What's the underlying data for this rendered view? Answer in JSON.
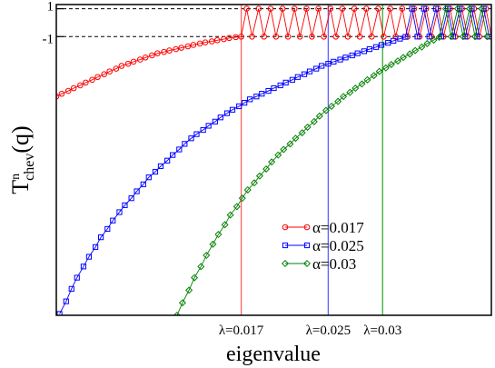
{
  "chart_data": {
    "type": "line",
    "xlabel": "eigenvalue",
    "ylabel": {
      "base": "T",
      "sup": "n",
      "sub": "chev",
      "arg": "(q)"
    },
    "xlim": [
      0,
      0.04
    ],
    "ylim": [
      -21,
      1.3
    ],
    "y_ticks": [
      {
        "value": 1,
        "label": "1"
      },
      {
        "value": -1,
        "label": "-1"
      }
    ],
    "x_markers": [
      {
        "value": 0.017,
        "label": "λ=0.017",
        "color": "#ff6060"
      },
      {
        "value": 0.025,
        "label": "λ=0.025",
        "color": "#6060ff"
      },
      {
        "value": 0.03,
        "label": "λ=0.03",
        "color": "#30b030"
      }
    ],
    "series": [
      {
        "name": "α=0.017",
        "color": "#ff0000",
        "marker": "circle",
        "regime": "oscillating",
        "x": [
          0.0,
          0.0005,
          0.0011,
          0.0016,
          0.0022,
          0.0027,
          0.0033,
          0.0038,
          0.0044,
          0.0049,
          0.0055,
          0.006,
          0.0066,
          0.0071,
          0.0077,
          0.0082,
          0.0088,
          0.0093,
          0.0099,
          0.0104,
          0.011,
          0.0115,
          0.0121,
          0.0126,
          0.0132,
          0.0137,
          0.0143,
          0.0148,
          0.0154,
          0.0159,
          0.0165,
          0.017,
          0.0175,
          0.018,
          0.0186,
          0.0191,
          0.0197,
          0.0202,
          0.0208,
          0.0213,
          0.0219,
          0.0224,
          0.023,
          0.0235,
          0.0241,
          0.0246,
          0.0252,
          0.0257,
          0.0263,
          0.0268,
          0.0274,
          0.0279,
          0.0285,
          0.029,
          0.0296,
          0.0301,
          0.0307,
          0.0312,
          0.0318,
          0.0323,
          0.0329,
          0.0334,
          0.034,
          0.0345,
          0.0351,
          0.0356,
          0.0362,
          0.0367,
          0.0373,
          0.0378,
          0.0384,
          0.0389,
          0.0395,
          0.04
        ],
        "y": [
          -5.3,
          -5.1,
          -4.9,
          -4.7,
          -4.5,
          -4.3,
          -4.1,
          -3.9,
          -3.7,
          -3.5,
          -3.3,
          -3.1,
          -2.95,
          -2.8,
          -2.65,
          -2.5,
          -2.35,
          -2.2,
          -2.1,
          -2.0,
          -1.9,
          -1.8,
          -1.7,
          -1.6,
          -1.5,
          -1.42,
          -1.34,
          -1.26,
          -1.18,
          -1.1,
          -1.04,
          -1.0,
          1.0,
          -1.0,
          1.0,
          -1.0,
          1.0,
          -1.0,
          1.0,
          -1.0,
          1.0,
          -1.0,
          1.0,
          -1.0,
          1.0,
          -1.0,
          1.0,
          -1.0,
          1.0,
          -1.0,
          1.0,
          -1.0,
          1.0,
          -1.0,
          1.0,
          -1.0,
          1.0,
          -1.0,
          1.0,
          -1.0,
          1.0,
          -1.0,
          1.0,
          -1.0,
          1.0,
          -1.0,
          1.0,
          -1.0,
          1.0,
          -1.0,
          1.0,
          -1.0,
          1.0,
          -1.0
        ]
      },
      {
        "name": "α=0.025",
        "color": "#0000ff",
        "marker": "square",
        "regime": "oscillating",
        "x": [
          0.0003,
          0.0009,
          0.0014,
          0.0019,
          0.0025,
          0.003,
          0.0036,
          0.0041,
          0.0047,
          0.0052,
          0.0058,
          0.0063,
          0.0069,
          0.0074,
          0.008,
          0.0085,
          0.0091,
          0.0096,
          0.0102,
          0.0107,
          0.0113,
          0.0118,
          0.0124,
          0.0129,
          0.0135,
          0.014,
          0.0146,
          0.0151,
          0.0157,
          0.0162,
          0.0168,
          0.0173,
          0.0178,
          0.0184,
          0.0189,
          0.0195,
          0.02,
          0.0206,
          0.0211,
          0.0217,
          0.0222,
          0.0228,
          0.0233,
          0.0239,
          0.0244,
          0.025,
          0.0255,
          0.0261,
          0.0266,
          0.0272,
          0.0277,
          0.0283,
          0.0288,
          0.0294,
          0.0299,
          0.0305,
          0.031,
          0.0316,
          0.0321,
          0.0327,
          0.0332,
          0.0338,
          0.0343,
          0.0349,
          0.0354,
          0.036,
          0.0365,
          0.0371,
          0.0376,
          0.0382,
          0.0387,
          0.0393,
          0.0398
        ],
        "y": [
          -20.9,
          -20.0,
          -19.1,
          -18.3,
          -17.5,
          -16.8,
          -16.1,
          -15.4,
          -14.8,
          -14.2,
          -13.6,
          -13.1,
          -12.6,
          -12.1,
          -11.6,
          -11.1,
          -10.7,
          -10.3,
          -9.9,
          -9.5,
          -9.1,
          -8.7,
          -8.3,
          -8.0,
          -7.7,
          -7.4,
          -7.1,
          -6.8,
          -6.5,
          -6.25,
          -6.0,
          -5.75,
          -5.5,
          -5.3,
          -5.1,
          -4.9,
          -4.7,
          -4.5,
          -4.3,
          -4.1,
          -3.9,
          -3.7,
          -3.5,
          -3.3,
          -3.1,
          -2.95,
          -2.8,
          -2.65,
          -2.5,
          -2.35,
          -2.2,
          -2.05,
          -1.9,
          -1.75,
          -1.6,
          -1.45,
          -1.3,
          -1.15,
          -1.02,
          1.0,
          -1.0,
          1.0,
          -1.0,
          1.0,
          -1.0,
          1.0,
          -1.0,
          1.0,
          -1.0,
          1.0,
          -1.0,
          1.0,
          -1.0
        ]
      },
      {
        "name": "α=0.03",
        "color": "#008000",
        "marker": "diamond",
        "regime": "oscillating",
        "x": [
          0.0111,
          0.0116,
          0.0122,
          0.0127,
          0.0133,
          0.0138,
          0.0144,
          0.0149,
          0.0155,
          0.016,
          0.0166,
          0.0171,
          0.0176,
          0.0182,
          0.0187,
          0.0193,
          0.0198,
          0.0204,
          0.0209,
          0.0215,
          0.022,
          0.0226,
          0.0231,
          0.0237,
          0.0242,
          0.0248,
          0.0253,
          0.0259,
          0.0264,
          0.027,
          0.0275,
          0.0281,
          0.0286,
          0.0292,
          0.0297,
          0.0303,
          0.0308,
          0.0314,
          0.0319,
          0.0325,
          0.033,
          0.0336,
          0.0341,
          0.0347,
          0.0352,
          0.0358,
          0.0363,
          0.0369,
          0.0374,
          0.038,
          0.0385,
          0.0391,
          0.0396
        ],
        "y": [
          -21.0,
          -20.1,
          -19.2,
          -18.3,
          -17.5,
          -16.7,
          -15.9,
          -15.2,
          -14.5,
          -13.8,
          -13.2,
          -12.6,
          -12.0,
          -11.5,
          -11.0,
          -10.5,
          -10.0,
          -9.5,
          -9.1,
          -8.7,
          -8.3,
          -7.9,
          -7.5,
          -7.1,
          -6.7,
          -6.3,
          -6.0,
          -5.65,
          -5.3,
          -5.0,
          -4.7,
          -4.4,
          -4.1,
          -3.8,
          -3.5,
          -3.25,
          -3.0,
          -2.75,
          -2.5,
          -2.25,
          -2.0,
          -1.75,
          -1.5,
          -1.25,
          -1.05,
          1.0,
          -1.0,
          1.0,
          -1.0,
          1.0,
          -1.0,
          1.0,
          -1.0
        ]
      }
    ],
    "legend_position": "lower-right",
    "grid": false
  }
}
